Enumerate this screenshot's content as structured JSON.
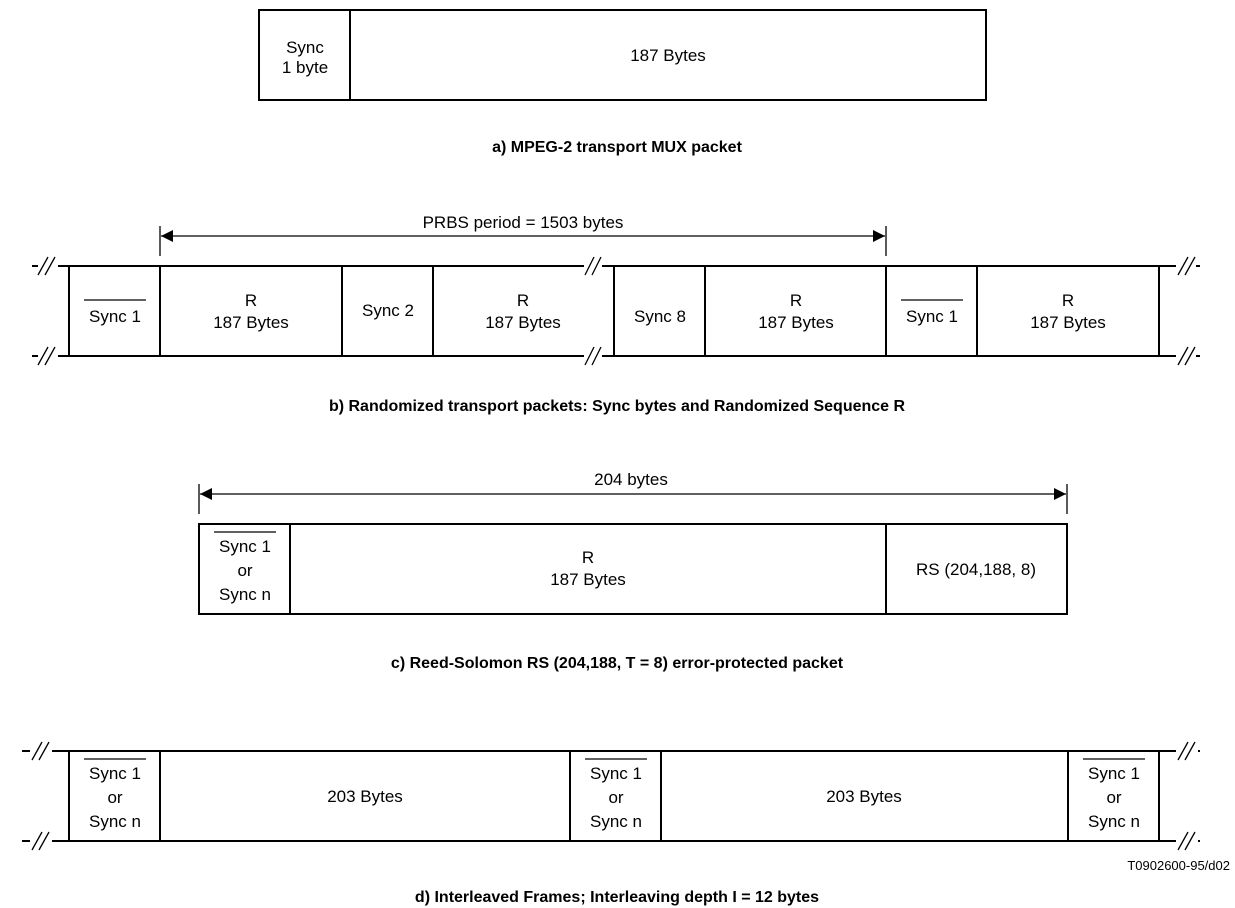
{
  "a": {
    "sync_line1": "Sync",
    "sync_line2": "1 byte",
    "payload": "187 Bytes",
    "caption": "a) MPEG-2 transport MUX packet"
  },
  "b": {
    "prbs_label": "PRBS period = 1503 bytes",
    "sync1": "Sync 1",
    "sync2": "Sync 2",
    "sync8": "Sync 8",
    "r": "R",
    "r_bytes": "187 Bytes",
    "caption": "b) Randomized transport packets: Sync bytes and Randomized Sequence R"
  },
  "c": {
    "length_label": "204 bytes",
    "sync1": "Sync 1",
    "or": "or",
    "syncn": "Sync n",
    "r": "R",
    "r_bytes": "187 Bytes",
    "rs": "RS (204,188, 8)",
    "caption": "c) Reed-Solomon RS (204,188, T = 8) error-protected packet"
  },
  "d": {
    "sync1": "Sync 1",
    "or": "or",
    "syncn": "Sync n",
    "bytes": "203 Bytes",
    "ref": "T0902600-95/d02",
    "caption": "d) Interleaved Frames; Interleaving depth I = 12 bytes"
  }
}
